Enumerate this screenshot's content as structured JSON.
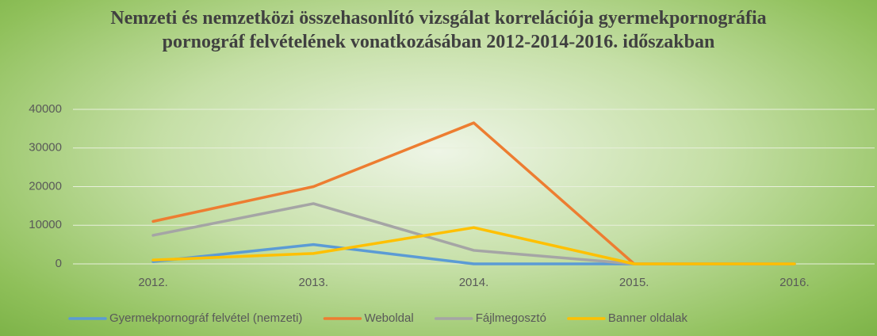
{
  "chart_data": {
    "type": "line",
    "title": "Nemzeti és nemzetközi összehasonlító vizsgálat korrelációja gyermekpornográfia pornográf felvételének vonatkozásában 2012-2014-2016. időszakban",
    "categories": [
      "2012.",
      "2013.",
      "2014.",
      "2015.",
      "2016."
    ],
    "series": [
      {
        "name": "Gyermekpornográf felvétel (nemzeti)",
        "color": "#5b9bd5",
        "values": [
          600,
          5000,
          0,
          0,
          0
        ]
      },
      {
        "name": "Weboldal",
        "color": "#ed7d31",
        "values": [
          11000,
          20000,
          36500,
          0,
          0
        ]
      },
      {
        "name": "Fájlmegosztó",
        "color": "#a5a5a5",
        "values": [
          7400,
          15600,
          3500,
          0,
          0
        ]
      },
      {
        "name": "Banner oldalak",
        "color": "#ffc000",
        "values": [
          1000,
          2700,
          9400,
          0,
          0
        ]
      }
    ],
    "ylim": [
      0,
      40000
    ],
    "yticks": [
      0,
      10000,
      20000,
      30000,
      40000
    ],
    "grid": true,
    "legend": "bottom"
  }
}
